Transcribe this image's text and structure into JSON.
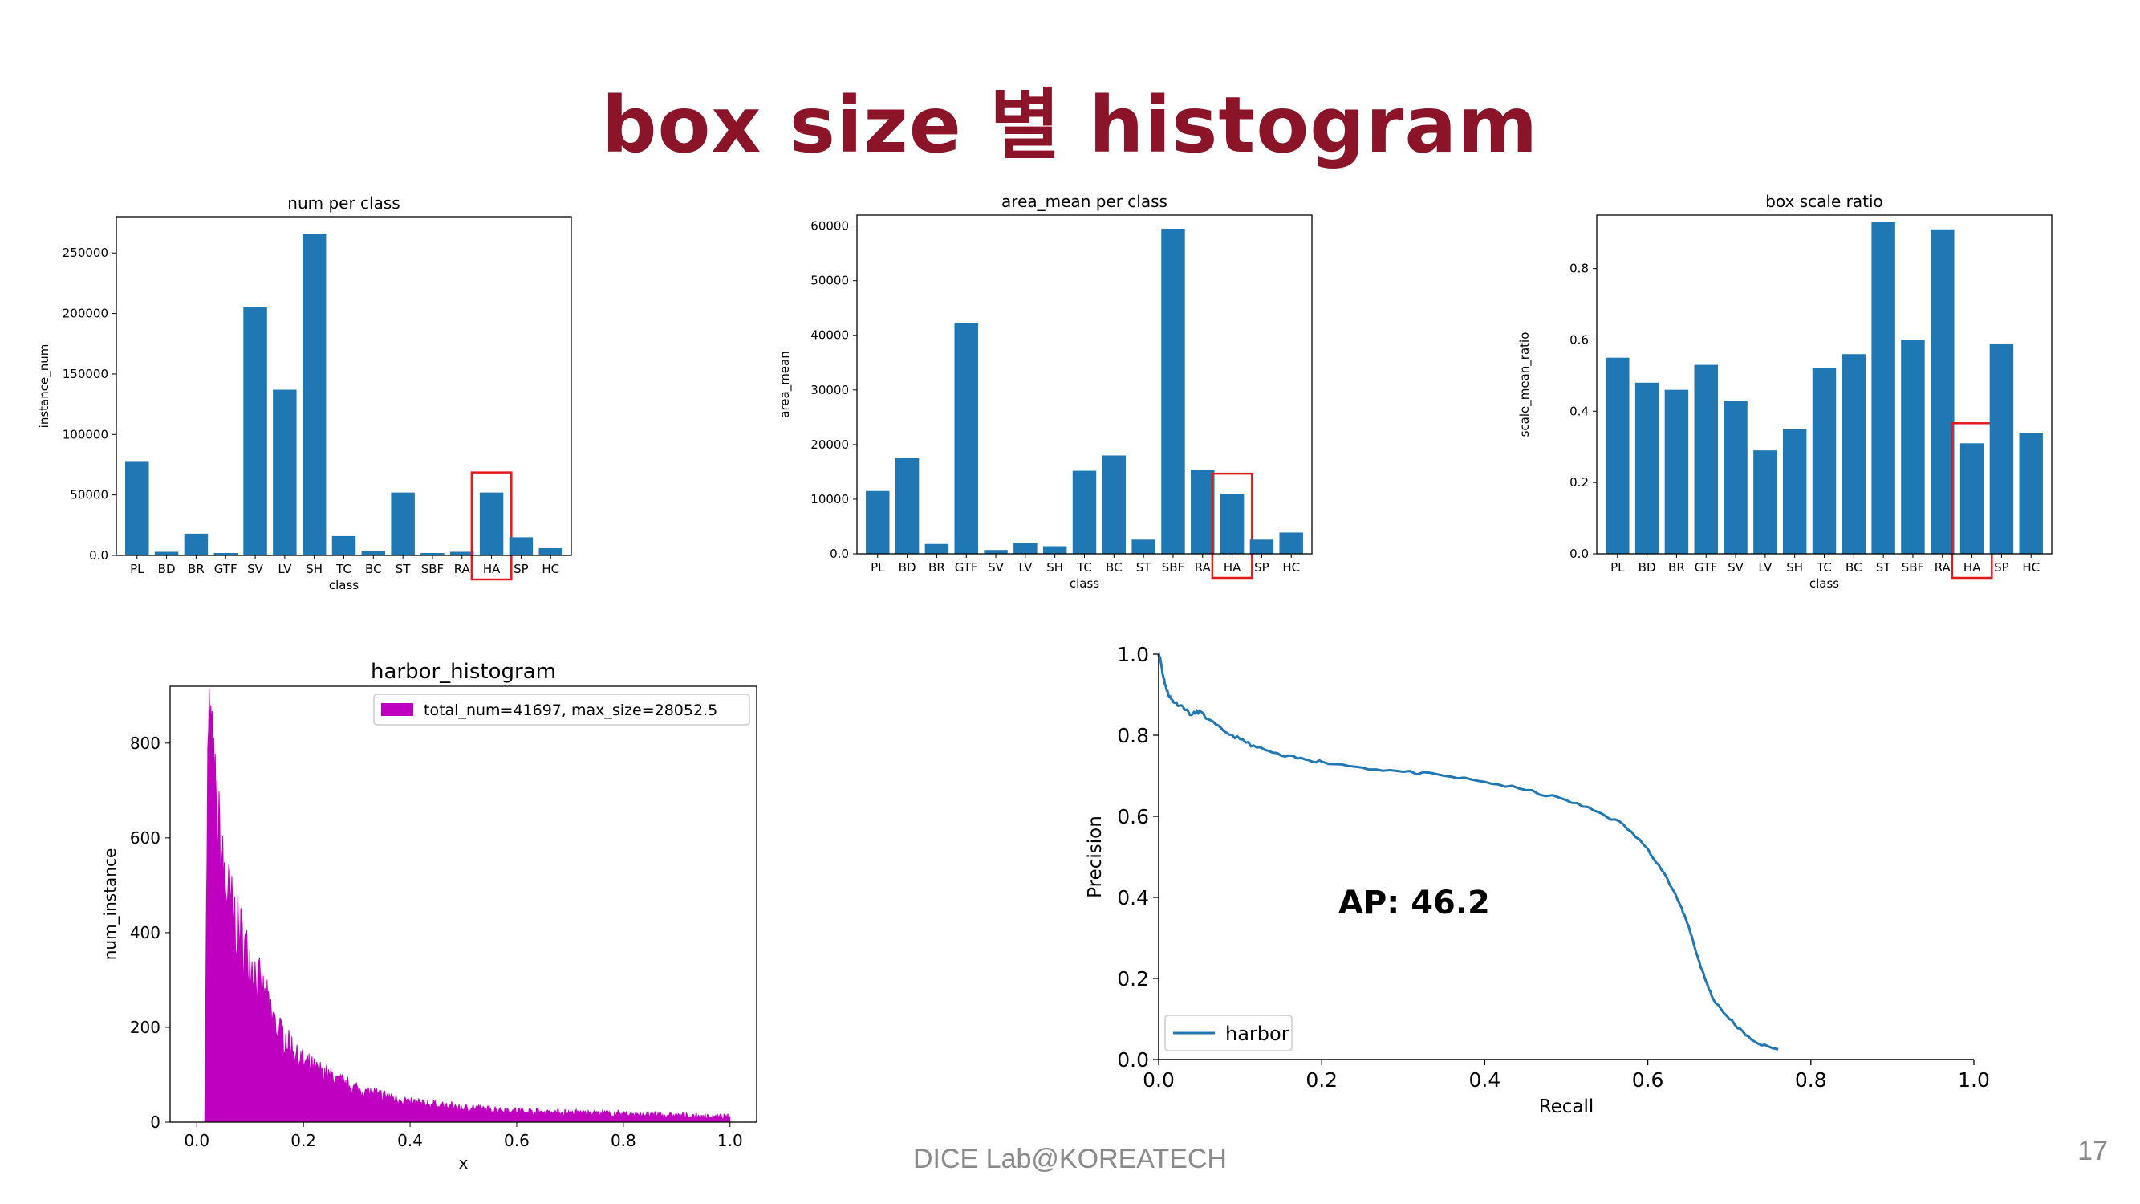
{
  "slide": {
    "title": "box size 별 histogram",
    "footer": "DICE Lab@KOREATECH",
    "page_number": "17"
  },
  "colors": {
    "title": "#8B1428",
    "bar": "#1f77b4",
    "highlight": "#e31a1c",
    "histogram": "#c000c0",
    "pr_line": "#1f77b4"
  },
  "chart_data": [
    {
      "type": "bar",
      "title": "num per class",
      "xlabel": "class",
      "ylabel": "instance_num",
      "categories": [
        "PL",
        "BD",
        "BR",
        "GTF",
        "SV",
        "LV",
        "SH",
        "TC",
        "BC",
        "ST",
        "SBF",
        "RA",
        "HA",
        "SP",
        "HC"
      ],
      "values": [
        78000,
        3000,
        18000,
        2000,
        205000,
        137000,
        266000,
        16000,
        4000,
        52000,
        2000,
        3000,
        52000,
        15000,
        6000
      ],
      "ylim": [
        0,
        280000
      ],
      "yticks": [
        0,
        50000,
        100000,
        150000,
        200000,
        250000
      ],
      "highlight": "HA"
    },
    {
      "type": "bar",
      "title": "area_mean per class",
      "xlabel": "class",
      "ylabel": "area_mean",
      "categories": [
        "PL",
        "BD",
        "BR",
        "GTF",
        "SV",
        "LV",
        "SH",
        "TC",
        "BC",
        "ST",
        "SBF",
        "RA",
        "HA",
        "SP",
        "HC"
      ],
      "values": [
        11500,
        17500,
        1800,
        42300,
        700,
        2000,
        1400,
        15200,
        18000,
        2600,
        59500,
        15400,
        11000,
        2600,
        3900
      ],
      "ylim": [
        0,
        62000
      ],
      "yticks": [
        0,
        10000,
        20000,
        30000,
        40000,
        50000,
        60000
      ],
      "highlight": "HA"
    },
    {
      "type": "bar",
      "title": "box scale ratio",
      "xlabel": "class",
      "ylabel": "scale_mean_ratio",
      "categories": [
        "PL",
        "BD",
        "BR",
        "GTF",
        "SV",
        "LV",
        "SH",
        "TC",
        "BC",
        "ST",
        "SBF",
        "RA",
        "HA",
        "SP",
        "HC"
      ],
      "values": [
        0.55,
        0.48,
        0.46,
        0.53,
        0.43,
        0.29,
        0.35,
        0.52,
        0.56,
        0.93,
        0.6,
        0.91,
        0.31,
        0.59,
        0.34
      ],
      "ylim": [
        0,
        0.95
      ],
      "yticks": [
        0.0,
        0.2,
        0.4,
        0.6,
        0.8
      ],
      "highlight": "HA"
    },
    {
      "type": "histogram",
      "title": "harbor_histogram",
      "xlabel": "x",
      "ylabel": "num_instance",
      "legend": "total_num=41697, max_size=28052.5",
      "xlim": [
        -0.05,
        1.05
      ],
      "ylim": [
        0,
        920
      ],
      "xticks": [
        0.0,
        0.2,
        0.4,
        0.6,
        0.8,
        1.0
      ],
      "yticks": [
        0,
        200,
        400,
        600,
        800
      ],
      "x_start": 0.015,
      "x_end": 1.0,
      "peak": {
        "x": 0.025,
        "y": 880
      },
      "envelope": [
        [
          0.015,
          0
        ],
        [
          0.02,
          700
        ],
        [
          0.025,
          880
        ],
        [
          0.03,
          720
        ],
        [
          0.04,
          620
        ],
        [
          0.05,
          520
        ],
        [
          0.07,
          430
        ],
        [
          0.1,
          340
        ],
        [
          0.15,
          200
        ],
        [
          0.2,
          125
        ],
        [
          0.3,
          70
        ],
        [
          0.4,
          42
        ],
        [
          0.5,
          30
        ],
        [
          0.6,
          24
        ],
        [
          0.7,
          20
        ],
        [
          0.8,
          17
        ],
        [
          0.9,
          14
        ],
        [
          1.0,
          10
        ]
      ]
    },
    {
      "type": "line",
      "title": "",
      "xlabel": "Recall",
      "ylabel": "Precision",
      "xlim": [
        0,
        1.0
      ],
      "ylim": [
        0,
        1.0
      ],
      "xticks": [
        0.0,
        0.2,
        0.4,
        0.6,
        0.8,
        1.0
      ],
      "yticks": [
        0.0,
        0.2,
        0.4,
        0.6,
        0.8,
        1.0
      ],
      "annotation": "AP: 46.2",
      "series": [
        {
          "name": "harbor",
          "x": [
            0.0,
            0.002,
            0.005,
            0.01,
            0.015,
            0.02,
            0.03,
            0.04,
            0.05,
            0.06,
            0.08,
            0.1,
            0.12,
            0.15,
            0.18,
            0.2,
            0.25,
            0.3,
            0.35,
            0.4,
            0.45,
            0.5,
            0.54,
            0.57,
            0.6,
            0.62,
            0.64,
            0.65,
            0.66,
            0.67,
            0.68,
            0.7,
            0.72,
            0.74,
            0.76
          ],
          "y": [
            1.0,
            0.99,
            0.95,
            0.91,
            0.89,
            0.88,
            0.87,
            0.85,
            0.86,
            0.84,
            0.81,
            0.79,
            0.77,
            0.75,
            0.74,
            0.735,
            0.72,
            0.71,
            0.7,
            0.685,
            0.665,
            0.64,
            0.61,
            0.58,
            0.52,
            0.46,
            0.38,
            0.33,
            0.26,
            0.2,
            0.15,
            0.1,
            0.06,
            0.035,
            0.025
          ]
        }
      ]
    }
  ]
}
